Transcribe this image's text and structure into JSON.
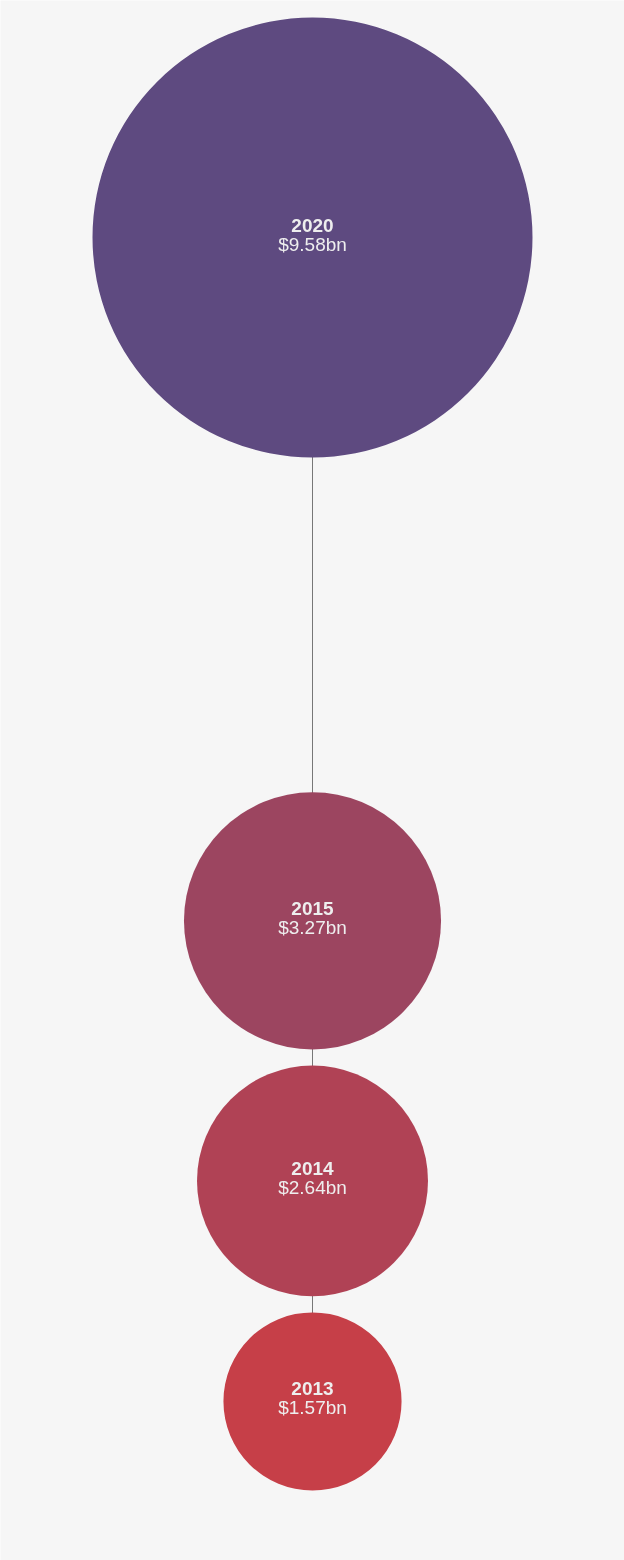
{
  "chart_data": {
    "type": "other",
    "categories": [
      "2020",
      "2015",
      "2014",
      "2013"
    ],
    "values": [
      9.58,
      3.27,
      2.64,
      1.57
    ],
    "value_labels": [
      "$9.58bn",
      "$3.27bn",
      "$2.64bn",
      "$1.57bn"
    ],
    "colors": [
      "#5e4a80",
      "#9c4560",
      "#b04255",
      "#c63f48"
    ]
  }
}
